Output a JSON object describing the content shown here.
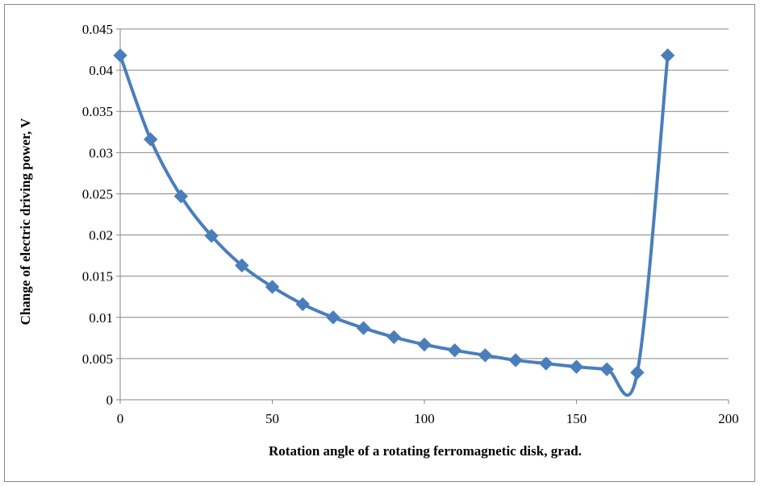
{
  "chart_data": {
    "type": "line",
    "title": "",
    "xlabel": "Rotation angle of a rotating ferromagnetic disk, grad.",
    "ylabel": "Change of electric driving power, V",
    "xlim": [
      0,
      200
    ],
    "ylim": [
      0,
      0.045
    ],
    "x_ticks": [
      "0",
      "50",
      "100",
      "150",
      "200"
    ],
    "y_ticks": [
      "0",
      "0.005",
      "0.01",
      "0.015",
      "0.02",
      "0.025",
      "0.03",
      "0.035",
      "0.04",
      "0.045"
    ],
    "grid": "horizontal",
    "legend": "none",
    "marker": "diamond",
    "smooth": true,
    "color": "#4a7ebb",
    "series": [
      {
        "x": [
          0,
          10,
          20,
          30,
          40,
          50,
          60,
          70,
          80,
          90,
          100,
          110,
          120,
          130,
          140,
          150,
          160,
          170,
          180
        ],
        "values": [
          0.0418,
          0.0316,
          0.0247,
          0.0199,
          0.0163,
          0.0137,
          0.0116,
          0.01,
          0.0087,
          0.0076,
          0.0067,
          0.006,
          0.0054,
          0.0048,
          0.0044,
          0.004,
          0.0037,
          0.0033,
          0.0418
        ]
      }
    ]
  }
}
